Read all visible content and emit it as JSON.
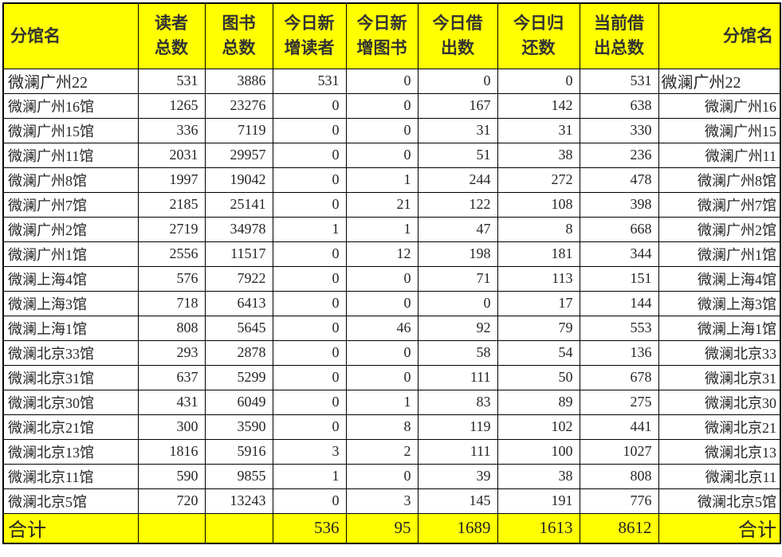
{
  "colors": {
    "header_bg": "#FFFF00",
    "total_bg": "#FFFF00",
    "border": "#000000",
    "text": "#262626"
  },
  "table": {
    "columns": [
      {
        "key": "name",
        "label": "分馆名"
      },
      {
        "key": "readers",
        "label": "读者\n总数"
      },
      {
        "key": "books",
        "label": "图书\n总数"
      },
      {
        "key": "new_readers",
        "label": "今日新\n增读者"
      },
      {
        "key": "new_books",
        "label": "今日新\n增图书"
      },
      {
        "key": "lent_today",
        "label": "今日借\n出数"
      },
      {
        "key": "returned_today",
        "label": "今日归\n还数"
      },
      {
        "key": "current_lent",
        "label": "当前借\n出总数"
      },
      {
        "key": "name_right",
        "label": "分馆名"
      }
    ],
    "rows": [
      {
        "name": "微澜广州22",
        "readers": 531,
        "books": 3886,
        "new_readers": 531,
        "new_books": 0,
        "lent_today": 0,
        "returned_today": 0,
        "current_lent": 531,
        "name_right": "微澜广州22"
      },
      {
        "name": "微澜广州16馆",
        "readers": 1265,
        "books": 23276,
        "new_readers": 0,
        "new_books": 0,
        "lent_today": 167,
        "returned_today": 142,
        "current_lent": 638,
        "name_right": "微澜广州16"
      },
      {
        "name": "微澜广州15馆",
        "readers": 336,
        "books": 7119,
        "new_readers": 0,
        "new_books": 0,
        "lent_today": 31,
        "returned_today": 31,
        "current_lent": 330,
        "name_right": "微澜广州15"
      },
      {
        "name": "微澜广州11馆",
        "readers": 2031,
        "books": 29957,
        "new_readers": 0,
        "new_books": 0,
        "lent_today": 51,
        "returned_today": 38,
        "current_lent": 236,
        "name_right": "微澜广州11"
      },
      {
        "name": "微澜广州8馆",
        "readers": 1997,
        "books": 19042,
        "new_readers": 0,
        "new_books": 1,
        "lent_today": 244,
        "returned_today": 272,
        "current_lent": 478,
        "name_right": "微澜广州8馆"
      },
      {
        "name": "微澜广州7馆",
        "readers": 2185,
        "books": 25141,
        "new_readers": 0,
        "new_books": 21,
        "lent_today": 122,
        "returned_today": 108,
        "current_lent": 398,
        "name_right": "微澜广州7馆"
      },
      {
        "name": "微澜广州2馆",
        "readers": 2719,
        "books": 34978,
        "new_readers": 1,
        "new_books": 1,
        "lent_today": 47,
        "returned_today": 8,
        "current_lent": 668,
        "name_right": "微澜广州2馆"
      },
      {
        "name": "微澜广州1馆",
        "readers": 2556,
        "books": 11517,
        "new_readers": 0,
        "new_books": 12,
        "lent_today": 198,
        "returned_today": 181,
        "current_lent": 344,
        "name_right": "微澜广州1馆"
      },
      {
        "name": "微澜上海4馆",
        "readers": 576,
        "books": 7922,
        "new_readers": 0,
        "new_books": 0,
        "lent_today": 71,
        "returned_today": 113,
        "current_lent": 151,
        "name_right": "微澜上海4馆"
      },
      {
        "name": "微澜上海3馆",
        "readers": 718,
        "books": 6413,
        "new_readers": 0,
        "new_books": 0,
        "lent_today": 0,
        "returned_today": 17,
        "current_lent": 144,
        "name_right": "微澜上海3馆"
      },
      {
        "name": "微澜上海1馆",
        "readers": 808,
        "books": 5645,
        "new_readers": 0,
        "new_books": 46,
        "lent_today": 92,
        "returned_today": 79,
        "current_lent": 553,
        "name_right": "微澜上海1馆"
      },
      {
        "name": "微澜北京33馆",
        "readers": 293,
        "books": 2878,
        "new_readers": 0,
        "new_books": 0,
        "lent_today": 58,
        "returned_today": 54,
        "current_lent": 136,
        "name_right": "微澜北京33"
      },
      {
        "name": "微澜北京31馆",
        "readers": 637,
        "books": 5299,
        "new_readers": 0,
        "new_books": 0,
        "lent_today": 111,
        "returned_today": 50,
        "current_lent": 678,
        "name_right": "微澜北京31"
      },
      {
        "name": "微澜北京30馆",
        "readers": 431,
        "books": 6049,
        "new_readers": 0,
        "new_books": 1,
        "lent_today": 83,
        "returned_today": 89,
        "current_lent": 275,
        "name_right": "微澜北京30"
      },
      {
        "name": "微澜北京21馆",
        "readers": 300,
        "books": 3590,
        "new_readers": 0,
        "new_books": 8,
        "lent_today": 119,
        "returned_today": 102,
        "current_lent": 441,
        "name_right": "微澜北京21"
      },
      {
        "name": "微澜北京13馆",
        "readers": 1816,
        "books": 5916,
        "new_readers": 3,
        "new_books": 2,
        "lent_today": 111,
        "returned_today": 100,
        "current_lent": 1027,
        "name_right": "微澜北京13"
      },
      {
        "name": "微澜北京11馆",
        "readers": 590,
        "books": 9855,
        "new_readers": 1,
        "new_books": 0,
        "lent_today": 39,
        "returned_today": 38,
        "current_lent": 808,
        "name_right": "微澜北京11"
      },
      {
        "name": "微澜北京5馆",
        "readers": 720,
        "books": 13243,
        "new_readers": 0,
        "new_books": 3,
        "lent_today": 145,
        "returned_today": 191,
        "current_lent": 776,
        "name_right": "微澜北京5馆"
      }
    ],
    "total": {
      "name": "合计",
      "readers": "",
      "books": "",
      "new_readers": 536,
      "new_books": 95,
      "lent_today": 1689,
      "returned_today": 1613,
      "current_lent": 8612,
      "name_right": "合计"
    }
  }
}
